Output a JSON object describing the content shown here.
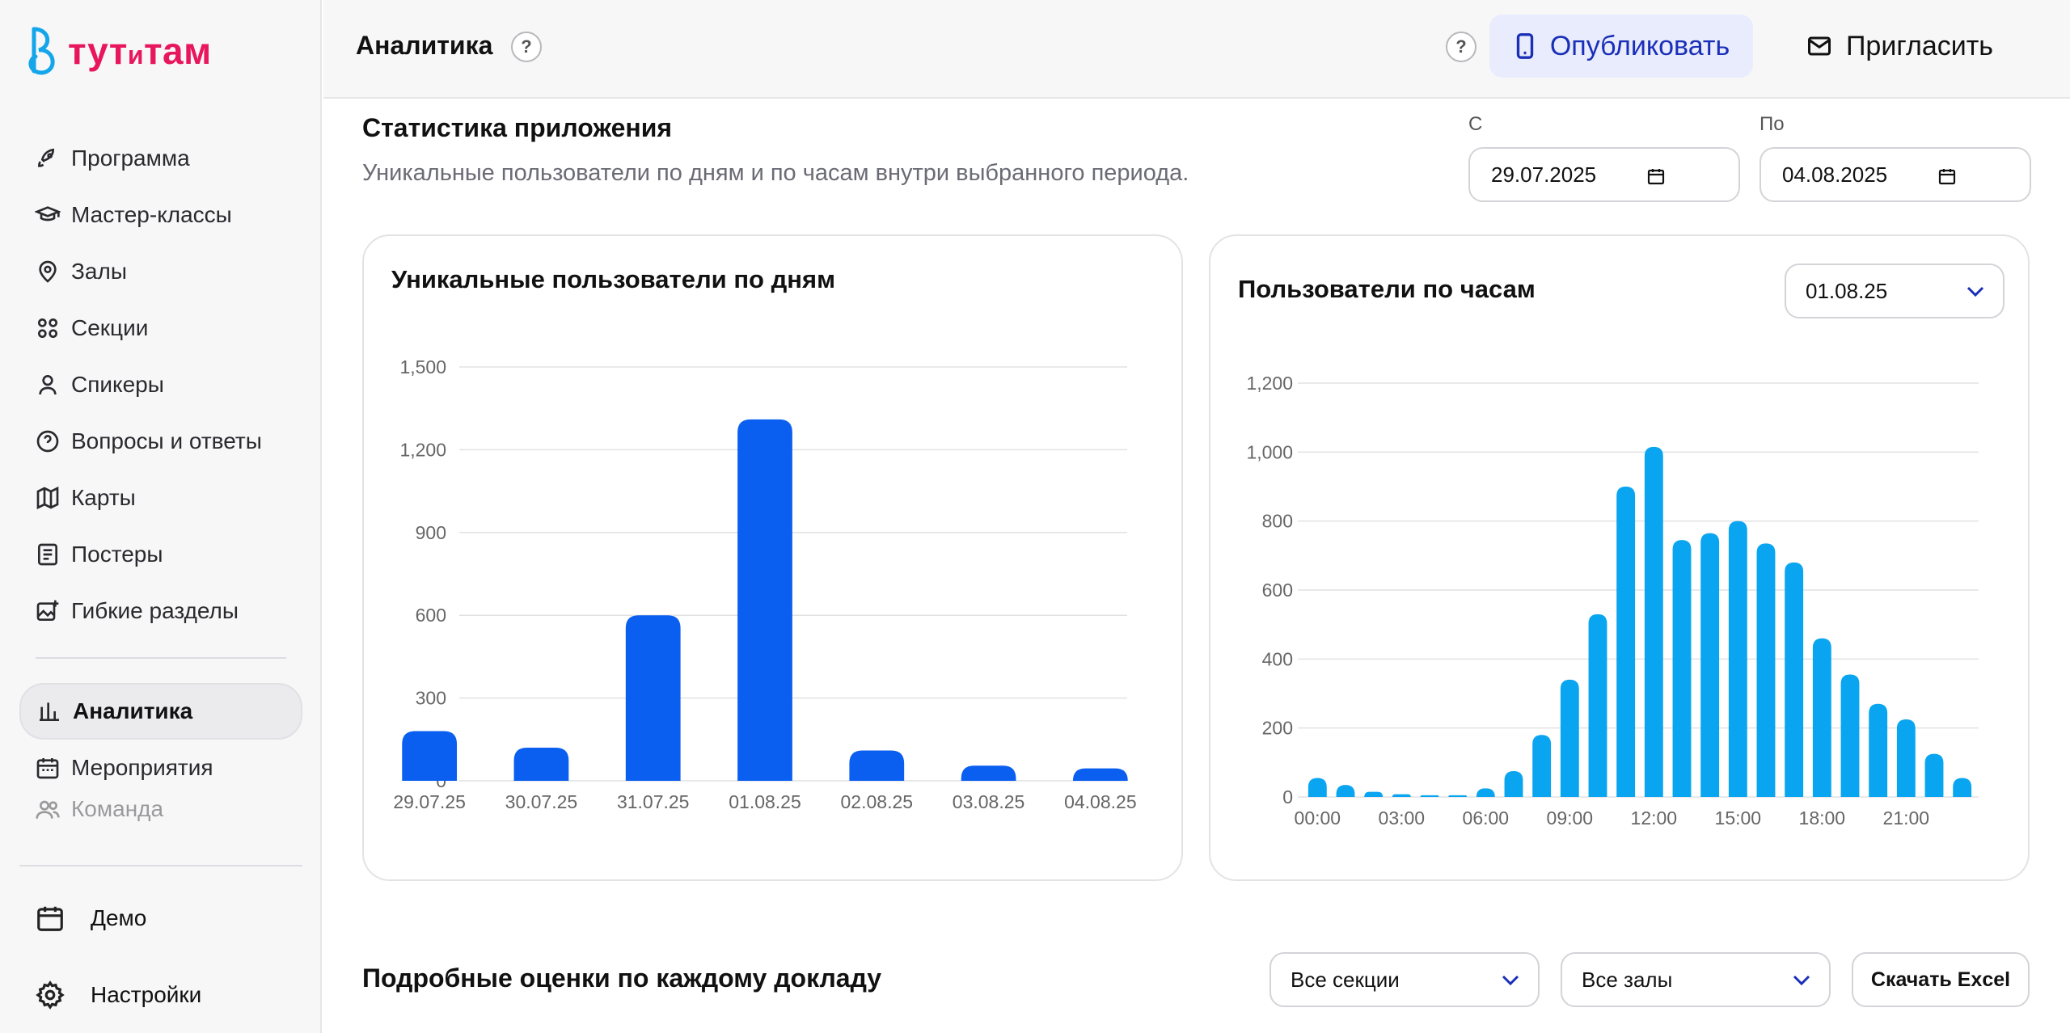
{
  "brand": {
    "name_big1": "тут",
    "name_small": "и",
    "name_big2": "там",
    "color": "#e8175d"
  },
  "sidebar": {
    "items": [
      {
        "label": "Программа",
        "icon": "rocket-icon"
      },
      {
        "label": "Мастер-классы",
        "icon": "graduation-cap-icon"
      },
      {
        "label": "Залы",
        "icon": "map-pin-icon"
      },
      {
        "label": "Секции",
        "icon": "grid-dots-icon"
      },
      {
        "label": "Спикеры",
        "icon": "user-icon"
      },
      {
        "label": "Вопросы и ответы",
        "icon": "question-circle-icon"
      },
      {
        "label": "Карты",
        "icon": "map-icon"
      },
      {
        "label": "Постеры",
        "icon": "poster-icon"
      },
      {
        "label": "Гибкие разделы",
        "icon": "image-plus-icon"
      }
    ],
    "items2": [
      {
        "label": "Аналитика",
        "icon": "bar-chart-icon",
        "active": true
      },
      {
        "label": "Мероприятия",
        "icon": "calendar-icon"
      },
      {
        "label": "Команда",
        "icon": "users-icon"
      }
    ],
    "bottom": [
      {
        "label": "Демо",
        "icon": "calendar-icon"
      },
      {
        "label": "Настройки",
        "icon": "gear-icon"
      }
    ]
  },
  "topbar": {
    "title": "Аналитика",
    "help": "?",
    "publish_label": "Опубликовать",
    "invite_label": "Пригласить"
  },
  "stats": {
    "title": "Статистика приложения",
    "subtitle": "Уникальные пользователи по дням и по часам внутри выбранного периода.",
    "from_label": "С",
    "from_value": "29.07.2025",
    "to_label": "По",
    "to_value": "04.08.2025"
  },
  "daily_card": {
    "title": "Уникальные пользователи по дням"
  },
  "hourly_card": {
    "title": "Пользователи по часам",
    "date_select": "01.08.25"
  },
  "details": {
    "title": "Подробные оценки по каждому докладу",
    "sections_select": "Все секции",
    "halls_select": "Все залы",
    "excel_label": "Скачать Excel"
  },
  "chart_data": [
    {
      "type": "bar",
      "title": "Уникальные пользователи по дням",
      "categories": [
        "29.07.25",
        "30.07.25",
        "31.07.25",
        "01.08.25",
        "02.08.25",
        "03.08.25",
        "04.08.25"
      ],
      "values": [
        180,
        120,
        600,
        1310,
        110,
        55,
        45
      ],
      "ylim": [
        0,
        1500
      ],
      "yticks": [
        "0",
        "300",
        "600",
        "900",
        "1,200",
        "1,500"
      ],
      "grid": true,
      "color": "#0a5ff0"
    },
    {
      "type": "bar",
      "title": "Пользователи по часам",
      "categories": [
        "00:00",
        "01:00",
        "02:00",
        "03:00",
        "04:00",
        "05:00",
        "06:00",
        "07:00",
        "08:00",
        "09:00",
        "10:00",
        "11:00",
        "12:00",
        "13:00",
        "14:00",
        "15:00",
        "16:00",
        "17:00",
        "18:00",
        "19:00",
        "20:00",
        "21:00",
        "22:00",
        "23:00"
      ],
      "xtick_labels": [
        "00:00",
        "03:00",
        "06:00",
        "09:00",
        "12:00",
        "15:00",
        "18:00",
        "21:00"
      ],
      "values": [
        55,
        35,
        15,
        8,
        5,
        5,
        25,
        75,
        180,
        340,
        530,
        900,
        1015,
        745,
        765,
        800,
        735,
        680,
        460,
        355,
        270,
        225,
        125,
        55
      ],
      "ylim": [
        0,
        1200
      ],
      "yticks": [
        "0",
        "200",
        "400",
        "600",
        "800",
        "1,000",
        "1,200"
      ],
      "grid": true,
      "color": "#0aa5f0"
    }
  ]
}
